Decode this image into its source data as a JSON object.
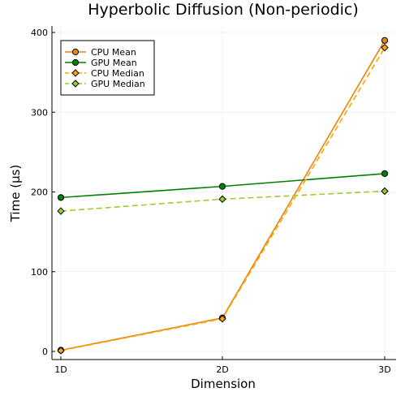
{
  "chart_data": {
    "type": "line",
    "title": "Hyperbolic Diffusion (Non-periodic)",
    "xlabel": "Dimension",
    "ylabel": "Time (μs)",
    "categories": [
      "1D",
      "2D",
      "3D"
    ],
    "ylim": [
      -10,
      400
    ],
    "yticks": [
      0,
      100,
      200,
      300,
      400
    ],
    "grid": true,
    "legend_position": "top-left",
    "series": [
      {
        "name": "CPU Mean",
        "values": [
          1.5,
          42,
          390
        ],
        "color": "#e6840e",
        "marker": "circle",
        "dash": "solid"
      },
      {
        "name": "GPU Mean",
        "values": [
          193,
          207,
          223
        ],
        "color": "#008000",
        "marker": "circle",
        "dash": "solid"
      },
      {
        "name": "CPU Median",
        "values": [
          1,
          41,
          381
        ],
        "color": "#ffa500",
        "marker": "diamond",
        "dash": "dashed"
      },
      {
        "name": "GPU Median",
        "values": [
          176,
          191,
          201
        ],
        "color": "#9acd32",
        "marker": "diamond",
        "dash": "dashed"
      }
    ]
  }
}
